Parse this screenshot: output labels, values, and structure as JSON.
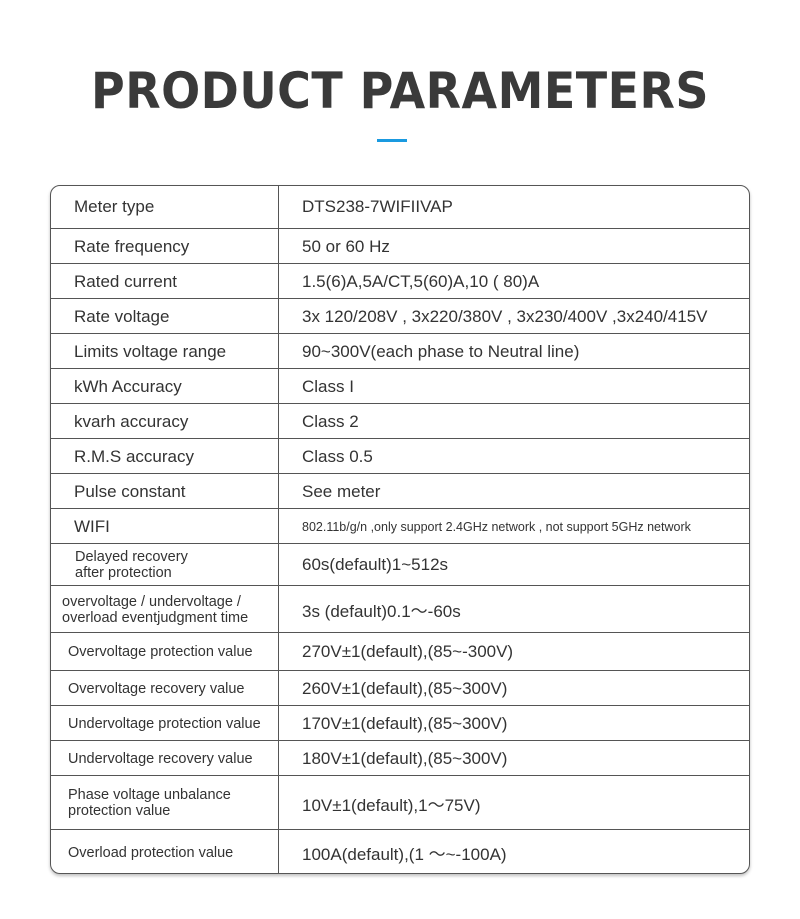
{
  "title": "PRODUCT PARAMETERS",
  "accent_color": "#1a9ae0",
  "rows": [
    {
      "label": "Meter type",
      "value": "DTS238-7WIFIIVAP"
    },
    {
      "label": "Rate frequency",
      "value": "50 or 60 Hz"
    },
    {
      "label": "Rated current",
      "value": "1.5(6)A,5A/CT,5(60)A,10 ( 80)A"
    },
    {
      "label": "Rate voltage",
      "value": "3x 120/208V , 3x220/380V , 3x230/400V ,3x240/415V"
    },
    {
      "label": "Limits voltage range",
      "value": "90~300V(each phase to Neutral line)"
    },
    {
      "label": "kWh Accuracy",
      "value": "Class I"
    },
    {
      "label": "kvarh accuracy",
      "value": "Class 2"
    },
    {
      "label": "R.M.S accuracy",
      "value": "Class 0.5"
    },
    {
      "label": "Pulse constant",
      "value": "See meter"
    },
    {
      "label": "WIFI",
      "value": "802.11b/g/n ,only support 2.4GHz network , not support 5GHz network"
    },
    {
      "label": "Delayed recovery\nafter protection",
      "value": "60s(default)1~512s"
    },
    {
      "label": "overvoltage / undervoltage /\noverload eventjudgment time",
      "value": "3s (default)0.1～-60s"
    },
    {
      "label": "Overvoltage protection value",
      "value": "270V±1(default),(85~-300V)"
    },
    {
      "label": "Overvoltage recovery value",
      "value": "260V±1(default),(85~300V)"
    },
    {
      "label": "Undervoltage protection value",
      "value": "170V±1(default),(85~300V)"
    },
    {
      "label": "Undervoltage recovery value",
      "value": "180V±1(default),(85~300V)"
    },
    {
      "label": "Phase voltage unbalance\nprotection value",
      "value": "10V±1(default),1～75V)"
    },
    {
      "label": "Overload protection value",
      "value": "100A(default),(1 ～~-100A)"
    }
  ]
}
